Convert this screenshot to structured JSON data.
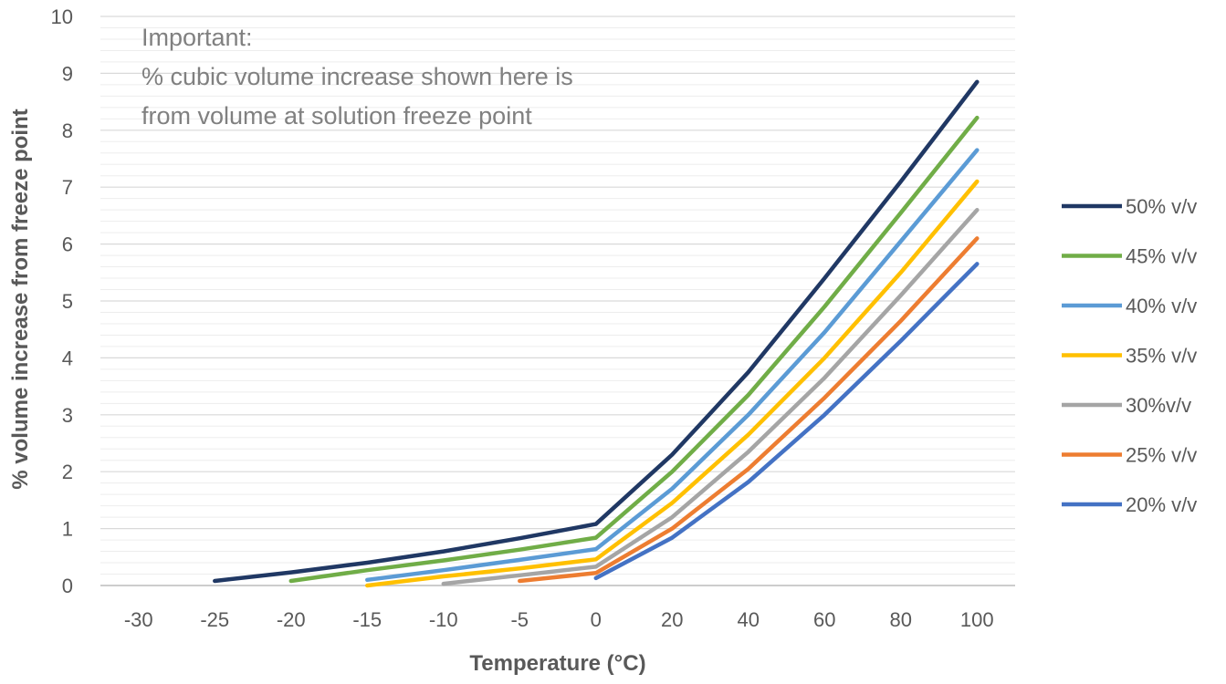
{
  "chart_data": {
    "type": "line",
    "title": "",
    "xlabel": "Temperature (°C)",
    "ylabel": "% volume increase from freeze point",
    "x": [
      -30,
      -25,
      -20,
      -15,
      -10,
      -5,
      0,
      20,
      40,
      60,
      80,
      100
    ],
    "x_tick_labels": [
      "-30",
      "-25",
      "-20",
      "-15",
      "-10",
      "-5",
      "0",
      "20",
      "40",
      "60",
      "80",
      "100"
    ],
    "ylim": [
      0,
      10
    ],
    "y_ticks": [
      0,
      1,
      2,
      3,
      4,
      5,
      6,
      7,
      8,
      9,
      10
    ],
    "grid": true,
    "legend_position": "right",
    "annotation": [
      "Important:",
      "% cubic volume increase shown here is",
      "from volume at solution freeze point"
    ],
    "series": [
      {
        "name": "50% v/v",
        "color": "#203864",
        "values": [
          null,
          0.08,
          0.23,
          0.4,
          0.6,
          0.83,
          1.08,
          2.3,
          3.75,
          5.4,
          7.1,
          8.85
        ]
      },
      {
        "name": "45% v/v",
        "color": "#70AD47",
        "values": [
          null,
          null,
          0.08,
          0.27,
          0.44,
          0.63,
          0.84,
          2.0,
          3.35,
          4.9,
          6.55,
          8.22
        ]
      },
      {
        "name": "40% v/v",
        "color": "#5B9BD5",
        "values": [
          null,
          null,
          null,
          0.1,
          0.27,
          0.45,
          0.64,
          1.7,
          3.0,
          4.45,
          6.05,
          7.65
        ]
      },
      {
        "name": "35% v/v",
        "color": "#FFC000",
        "values": [
          null,
          null,
          null,
          0.0,
          0.16,
          0.3,
          0.46,
          1.45,
          2.65,
          4.0,
          5.5,
          7.1
        ]
      },
      {
        "name": "30%v/v",
        "color": "#A5A5A5",
        "values": [
          null,
          null,
          null,
          null,
          0.03,
          0.18,
          0.33,
          1.2,
          2.35,
          3.65,
          5.1,
          6.6
        ]
      },
      {
        "name": "25% v/v",
        "color": "#ED7D31",
        "values": [
          null,
          null,
          null,
          null,
          null,
          0.08,
          0.22,
          1.0,
          2.05,
          3.3,
          4.65,
          6.1
        ]
      },
      {
        "name": "20% v/v",
        "color": "#4472C4",
        "values": [
          null,
          null,
          null,
          null,
          null,
          null,
          0.13,
          0.84,
          1.82,
          3.0,
          4.3,
          5.65
        ]
      }
    ]
  }
}
